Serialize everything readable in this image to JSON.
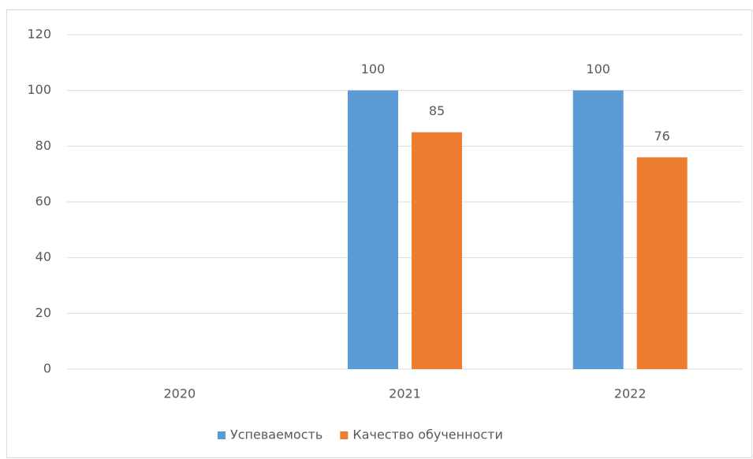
{
  "chart_data": {
    "type": "bar",
    "categories": [
      "2020",
      "2021",
      "2022"
    ],
    "series": [
      {
        "name": "Успеваемость",
        "color": "#5b9bd5",
        "values": [
          null,
          100,
          100
        ]
      },
      {
        "name": "Качество обученности",
        "color": "#ed7d31",
        "values": [
          null,
          85,
          76
        ]
      }
    ],
    "ylim": [
      0,
      120
    ],
    "yticks": [
      0,
      20,
      40,
      60,
      80,
      100,
      120
    ],
    "grid": true,
    "data_labels": true,
    "legend": "bottom"
  }
}
